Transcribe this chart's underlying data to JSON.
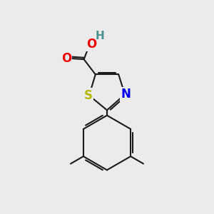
{
  "bg_color": "#ebebeb",
  "bond_color": "#1a1a1a",
  "bond_width": 1.5,
  "atom_colors": {
    "S": "#b8b800",
    "N": "#0000ee",
    "O": "#ee0000",
    "H": "#4a9090",
    "C": "#1a1a1a"
  },
  "font_size": 12
}
